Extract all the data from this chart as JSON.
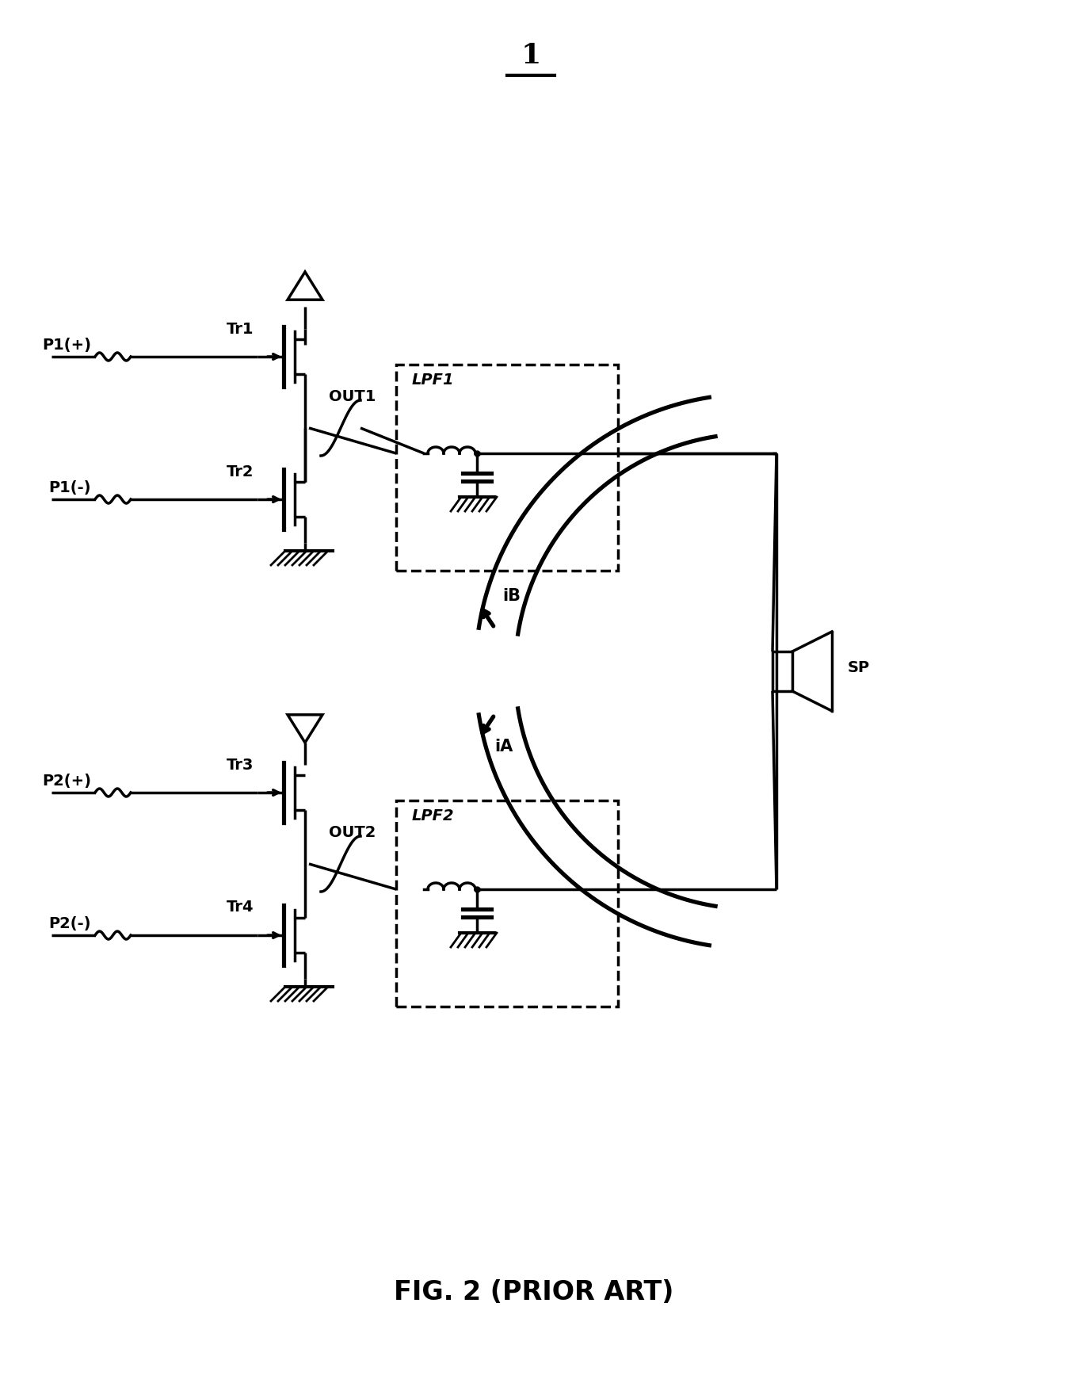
{
  "title_label": "1",
  "caption": "FIG. 2 (PRIOR ART)",
  "labels": {
    "P1_plus": "P1(+)",
    "P1_minus": "P1(-)",
    "P2_plus": "P2(+)",
    "P2_minus": "P2(-)",
    "Tr1": "Tr1",
    "Tr2": "Tr2",
    "Tr3": "Tr3",
    "Tr4": "Tr4",
    "OUT1": "OUT1",
    "OUT2": "OUT2",
    "LPF1": "LPF1",
    "LPF2": "LPF2",
    "SP": "SP",
    "iA": "iA",
    "iB": "iB"
  },
  "bg_color": "#ffffff",
  "line_color": "#000000",
  "linewidth": 2.5
}
